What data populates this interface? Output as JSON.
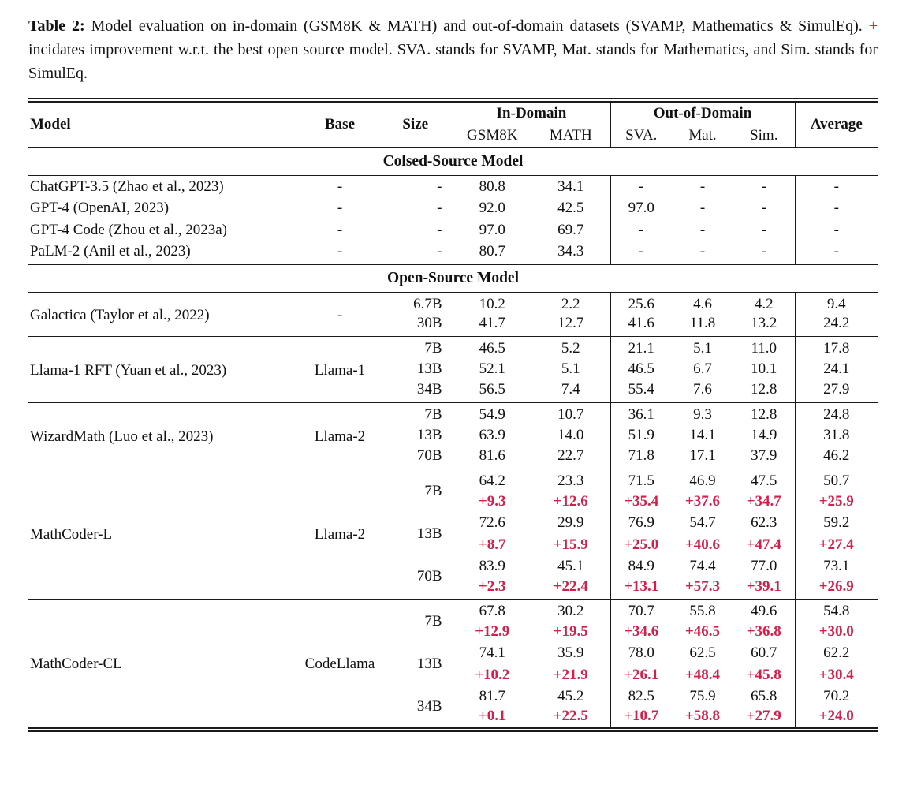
{
  "caption": {
    "label": "Table 2:",
    "text_before_plus": "Model evaluation on in-domain (GSM8K & MATH) and out-of-domain datasets (SVAMP, Mathematics & SimulEq).",
    "plus": "+",
    "text_after_plus": "incidates improvement w.r.t. the best open source model. SVA. stands for SVAMP, Mat. stands for Mathematics, and Sim. stands for SimulEq."
  },
  "colors": {
    "caption_plus_red": "#ee1c2e",
    "delta_red": "#d2204a"
  },
  "table": {
    "header": {
      "model": "Model",
      "base": "Base",
      "size": "Size",
      "in_domain": "In-Domain",
      "out_of_domain": "Out-of-Domain",
      "average": "Average",
      "sub": [
        "GSM8K",
        "MATH",
        "SVA.",
        "Mat.",
        "Sim."
      ]
    },
    "sections": [
      {
        "title": "Colsed-Source Model",
        "groups": [
          {
            "model": "ChatGPT-3.5 (Zhao et al., 2023)",
            "base": "-",
            "rows": [
              {
                "size": "-",
                "values": [
                  "80.8",
                  "34.1",
                  "-",
                  "-",
                  "-",
                  "-"
                ]
              }
            ]
          },
          {
            "model": "GPT-4 (OpenAI, 2023)",
            "base": "-",
            "rows": [
              {
                "size": "-",
                "values": [
                  "92.0",
                  "42.5",
                  "97.0",
                  "-",
                  "-",
                  "-"
                ]
              }
            ]
          },
          {
            "model": "GPT-4 Code (Zhou et al., 2023a)",
            "base": "-",
            "rows": [
              {
                "size": "-",
                "values": [
                  "97.0",
                  "69.7",
                  "-",
                  "-",
                  "-",
                  "-"
                ]
              }
            ]
          },
          {
            "model": "PaLM-2 (Anil et al., 2023)",
            "base": "-",
            "rows": [
              {
                "size": "-",
                "values": [
                  "80.7",
                  "34.3",
                  "-",
                  "-",
                  "-",
                  "-"
                ]
              }
            ]
          }
        ],
        "merge_groups": true
      },
      {
        "title": "Open-Source Model",
        "groups": [
          {
            "model": "Galactica (Taylor et al., 2022)",
            "base": "-",
            "rows": [
              {
                "size": "6.7B",
                "values": [
                  "10.2",
                  "2.2",
                  "25.6",
                  "4.6",
                  "4.2",
                  "9.4"
                ]
              },
              {
                "size": "30B",
                "values": [
                  "41.7",
                  "12.7",
                  "41.6",
                  "11.8",
                  "13.2",
                  "24.2"
                ]
              }
            ]
          },
          {
            "model": "Llama-1 RFT (Yuan et al., 2023)",
            "base": "Llama-1",
            "rows": [
              {
                "size": "7B",
                "values": [
                  "46.5",
                  "5.2",
                  "21.1",
                  "5.1",
                  "11.0",
                  "17.8"
                ]
              },
              {
                "size": "13B",
                "values": [
                  "52.1",
                  "5.1",
                  "46.5",
                  "6.7",
                  "10.1",
                  "24.1"
                ]
              },
              {
                "size": "34B",
                "values": [
                  "56.5",
                  "7.4",
                  "55.4",
                  "7.6",
                  "12.8",
                  "27.9"
                ]
              }
            ]
          },
          {
            "model": "WizardMath (Luo et al., 2023)",
            "base": "Llama-2",
            "rows": [
              {
                "size": "7B",
                "values": [
                  "54.9",
                  "10.7",
                  "36.1",
                  "9.3",
                  "12.8",
                  "24.8"
                ]
              },
              {
                "size": "13B",
                "values": [
                  "63.9",
                  "14.0",
                  "51.9",
                  "14.1",
                  "14.9",
                  "31.8"
                ]
              },
              {
                "size": "70B",
                "values": [
                  "81.6",
                  "22.7",
                  "71.8",
                  "17.1",
                  "37.9",
                  "46.2"
                ]
              }
            ]
          },
          {
            "model": "MathCoder-L",
            "base": "Llama-2",
            "rows": [
              {
                "size": "7B",
                "values": [
                  "64.2",
                  "23.3",
                  "71.5",
                  "46.9",
                  "47.5",
                  "50.7"
                ],
                "delta": [
                  "+9.3",
                  "+12.6",
                  "+35.4",
                  "+37.6",
                  "+34.7",
                  "+25.9"
                ]
              },
              {
                "size": "13B",
                "values": [
                  "72.6",
                  "29.9",
                  "76.9",
                  "54.7",
                  "62.3",
                  "59.2"
                ],
                "delta": [
                  "+8.7",
                  "+15.9",
                  "+25.0",
                  "+40.6",
                  "+47.4",
                  "+27.4"
                ]
              },
              {
                "size": "70B",
                "values": [
                  "83.9",
                  "45.1",
                  "84.9",
                  "74.4",
                  "77.0",
                  "73.1"
                ],
                "delta": [
                  "+2.3",
                  "+22.4",
                  "+13.1",
                  "+57.3",
                  "+39.1",
                  "+26.9"
                ]
              }
            ]
          },
          {
            "model": "MathCoder-CL",
            "base": "CodeLlama",
            "rows": [
              {
                "size": "7B",
                "values": [
                  "67.8",
                  "30.2",
                  "70.7",
                  "55.8",
                  "49.6",
                  "54.8"
                ],
                "delta": [
                  "+12.9",
                  "+19.5",
                  "+34.6",
                  "+46.5",
                  "+36.8",
                  "+30.0"
                ]
              },
              {
                "size": "13B",
                "values": [
                  "74.1",
                  "35.9",
                  "78.0",
                  "62.5",
                  "60.7",
                  "62.2"
                ],
                "delta": [
                  "+10.2",
                  "+21.9",
                  "+26.1",
                  "+48.4",
                  "+45.8",
                  "+30.4"
                ]
              },
              {
                "size": "34B",
                "values": [
                  "81.7",
                  "45.2",
                  "82.5",
                  "75.9",
                  "65.8",
                  "70.2"
                ],
                "delta": [
                  "+0.1",
                  "+22.5",
                  "+10.7",
                  "+58.8",
                  "+27.9",
                  "+24.0"
                ]
              }
            ]
          }
        ]
      }
    ]
  }
}
